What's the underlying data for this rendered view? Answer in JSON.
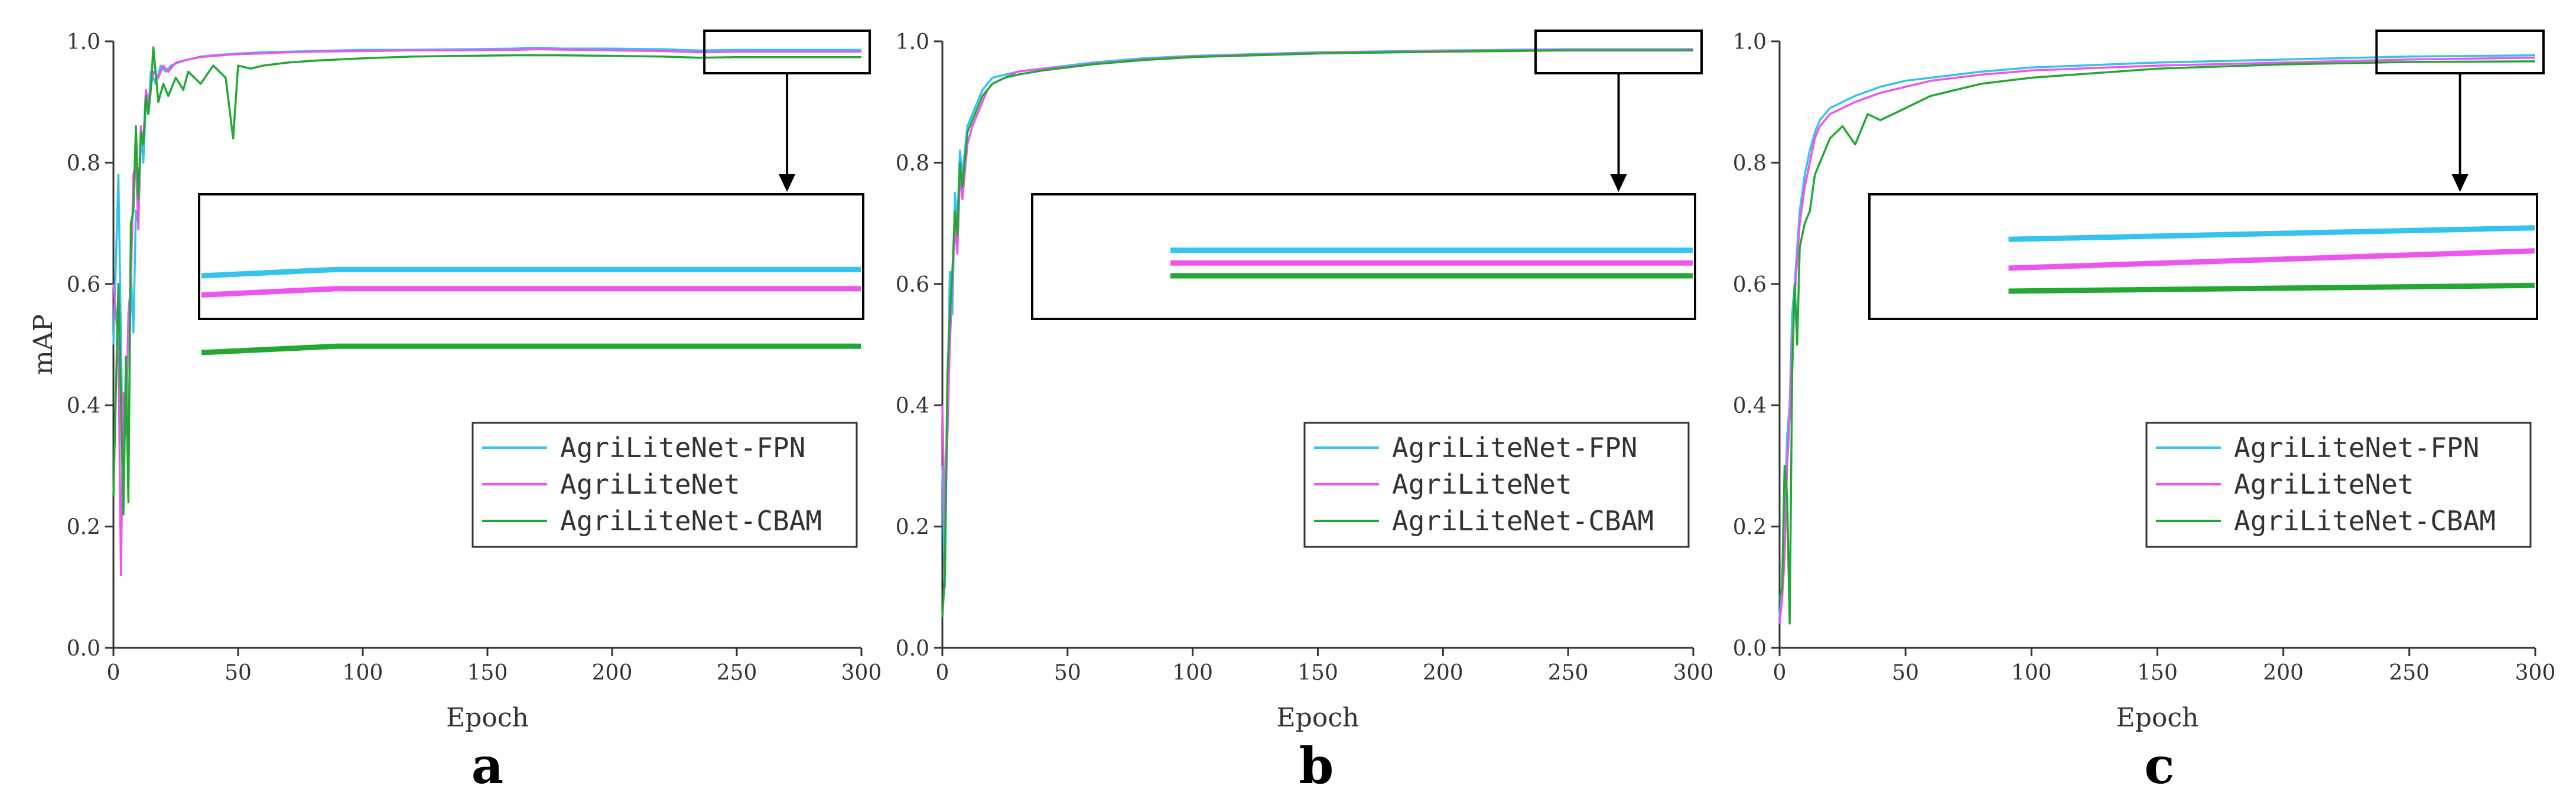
{
  "chart_data": [
    {
      "type": "line",
      "panel_label": "a",
      "xlabel": "Epoch",
      "ylabel": "mAP",
      "xlim": [
        0,
        300
      ],
      "ylim": [
        0,
        1.0
      ],
      "xticks": [
        "0",
        "50",
        "100",
        "150",
        "200",
        "250",
        "300"
      ],
      "yticks": [
        "0.0",
        "0.2",
        "0.4",
        "0.6",
        "0.8",
        "1.0"
      ],
      "legend_position": "bottom-right",
      "zoom_inset": {
        "x_range": [
          237,
          300
        ],
        "y_range": [
          0.979,
          0.997
        ]
      },
      "series": [
        {
          "name": "AgriLiteNet-FPN",
          "color": "#33c3ee",
          "x": [
            0,
            2,
            4,
            5,
            6,
            7,
            8,
            9,
            10,
            11,
            12,
            13,
            14,
            15,
            17,
            19,
            21,
            23,
            26,
            30,
            35,
            40,
            50,
            60,
            70,
            80,
            100,
            120,
            140,
            160,
            170,
            180,
            200,
            220,
            235,
            250,
            270,
            300
          ],
          "values": [
            0.5,
            0.78,
            0.25,
            0.44,
            0.3,
            0.62,
            0.52,
            0.72,
            0.7,
            0.85,
            0.8,
            0.9,
            0.88,
            0.95,
            0.93,
            0.96,
            0.95,
            0.96,
            0.965,
            0.97,
            0.975,
            0.977,
            0.98,
            0.982,
            0.983,
            0.984,
            0.986,
            0.986,
            0.987,
            0.988,
            0.989,
            0.988,
            0.988,
            0.987,
            0.985,
            0.986,
            0.986,
            0.986
          ]
        },
        {
          "name": "AgriLiteNet",
          "color": "#ee55ee",
          "x": [
            0,
            2,
            3,
            4,
            5,
            6,
            7,
            8,
            9,
            10,
            11,
            12,
            13,
            14,
            16,
            18,
            20,
            22,
            25,
            30,
            35,
            40,
            50,
            60,
            70,
            80,
            100,
            120,
            140,
            160,
            170,
            200,
            220,
            235,
            250,
            270,
            300
          ],
          "values": [
            0.6,
            0.5,
            0.12,
            0.42,
            0.35,
            0.55,
            0.6,
            0.78,
            0.8,
            0.69,
            0.86,
            0.83,
            0.92,
            0.9,
            0.95,
            0.94,
            0.96,
            0.95,
            0.965,
            0.97,
            0.974,
            0.976,
            0.979,
            0.98,
            0.982,
            0.983,
            0.984,
            0.985,
            0.985,
            0.986,
            0.987,
            0.985,
            0.984,
            0.982,
            0.983,
            0.983,
            0.983
          ]
        },
        {
          "name": "AgriLiteNet-CBAM",
          "color": "#22a833",
          "x": [
            0,
            2,
            4,
            5,
            6,
            7,
            8,
            9,
            10,
            11,
            12,
            13,
            14,
            15,
            16,
            18,
            20,
            22,
            25,
            28,
            30,
            35,
            40,
            45,
            48,
            50,
            55,
            60,
            70,
            80,
            90,
            100,
            120,
            140,
            160,
            180,
            200,
            220,
            235,
            250,
            270,
            300
          ],
          "values": [
            0.25,
            0.6,
            0.22,
            0.48,
            0.24,
            0.7,
            0.72,
            0.86,
            0.74,
            0.85,
            0.83,
            0.91,
            0.88,
            0.92,
            0.99,
            0.9,
            0.93,
            0.91,
            0.94,
            0.92,
            0.95,
            0.93,
            0.96,
            0.94,
            0.84,
            0.96,
            0.955,
            0.96,
            0.965,
            0.968,
            0.97,
            0.972,
            0.975,
            0.976,
            0.977,
            0.977,
            0.976,
            0.975,
            0.973,
            0.974,
            0.974,
            0.974
          ]
        }
      ]
    },
    {
      "type": "line",
      "panel_label": "b",
      "xlabel": "Epoch",
      "ylabel": "",
      "xlim": [
        0,
        300
      ],
      "ylim": [
        0,
        1.0
      ],
      "xticks": [
        "0",
        "50",
        "100",
        "150",
        "200",
        "250",
        "300"
      ],
      "yticks": [
        "0.0",
        "0.2",
        "0.4",
        "0.6",
        "0.8",
        "1.0"
      ],
      "legend_position": "bottom-right",
      "zoom_inset": {
        "x_range": [
          237,
          300
        ],
        "y_range": [
          0.982,
          0.991
        ]
      },
      "series": [
        {
          "name": "AgriLiteNet-FPN",
          "color": "#33c3ee",
          "x": [
            0,
            1,
            2,
            3,
            4,
            5,
            6,
            7,
            8,
            10,
            12,
            14,
            16,
            18,
            20,
            25,
            30,
            40,
            50,
            60,
            80,
            100,
            150,
            200,
            250,
            300
          ],
          "values": [
            0.3,
            0.1,
            0.4,
            0.62,
            0.55,
            0.75,
            0.7,
            0.82,
            0.78,
            0.86,
            0.88,
            0.9,
            0.92,
            0.93,
            0.94,
            0.945,
            0.95,
            0.955,
            0.96,
            0.965,
            0.972,
            0.976,
            0.982,
            0.985,
            0.987,
            0.987
          ]
        },
        {
          "name": "AgriLiteNet",
          "color": "#ee55ee",
          "x": [
            0,
            1,
            2,
            3,
            4,
            5,
            6,
            7,
            8,
            10,
            12,
            14,
            16,
            18,
            20,
            25,
            30,
            40,
            50,
            60,
            80,
            100,
            150,
            200,
            250,
            300
          ],
          "values": [
            0.4,
            0.2,
            0.35,
            0.5,
            0.6,
            0.7,
            0.65,
            0.78,
            0.74,
            0.83,
            0.86,
            0.88,
            0.9,
            0.92,
            0.93,
            0.94,
            0.95,
            0.955,
            0.958,
            0.963,
            0.97,
            0.975,
            0.981,
            0.984,
            0.986,
            0.986
          ]
        },
        {
          "name": "AgriLiteNet-CBAM",
          "color": "#22a833",
          "x": [
            0,
            1,
            2,
            3,
            4,
            5,
            6,
            7,
            8,
            10,
            12,
            14,
            16,
            18,
            20,
            25,
            30,
            40,
            50,
            60,
            80,
            100,
            150,
            200,
            250,
            300
          ],
          "values": [
            0.05,
            0.12,
            0.45,
            0.55,
            0.62,
            0.72,
            0.68,
            0.8,
            0.76,
            0.85,
            0.87,
            0.89,
            0.91,
            0.92,
            0.93,
            0.94,
            0.945,
            0.952,
            0.957,
            0.962,
            0.969,
            0.974,
            0.98,
            0.983,
            0.985,
            0.985
          ]
        }
      ]
    },
    {
      "type": "line",
      "panel_label": "c",
      "xlabel": "Epoch",
      "ylabel": "",
      "xlim": [
        0,
        300
      ],
      "ylim": [
        0,
        1.0
      ],
      "xticks": [
        "0",
        "50",
        "100",
        "150",
        "200",
        "250",
        "300"
      ],
      "yticks": [
        "0.0",
        "0.2",
        "0.4",
        "0.6",
        "0.8",
        "1.0"
      ],
      "legend_position": "bottom-right",
      "zoom_inset": {
        "x_range": [
          237,
          300
        ],
        "y_range": [
          0.962,
          0.982
        ]
      },
      "series": [
        {
          "name": "AgriLiteNet-FPN",
          "color": "#33c3ee",
          "x": [
            0,
            1,
            2,
            3,
            4,
            5,
            6,
            8,
            10,
            12,
            14,
            16,
            18,
            20,
            25,
            30,
            40,
            50,
            60,
            80,
            100,
            150,
            200,
            250,
            300
          ],
          "values": [
            0.05,
            0.1,
            0.2,
            0.35,
            0.4,
            0.55,
            0.6,
            0.72,
            0.78,
            0.82,
            0.85,
            0.87,
            0.88,
            0.89,
            0.9,
            0.91,
            0.925,
            0.935,
            0.94,
            0.95,
            0.957,
            0.965,
            0.97,
            0.975,
            0.977
          ]
        },
        {
          "name": "AgriLiteNet",
          "color": "#ee55ee",
          "x": [
            0,
            1,
            2,
            3,
            4,
            5,
            6,
            8,
            10,
            12,
            14,
            16,
            18,
            20,
            25,
            30,
            40,
            50,
            60,
            80,
            100,
            150,
            200,
            250,
            300
          ],
          "values": [
            0.04,
            0.08,
            0.15,
            0.3,
            0.38,
            0.5,
            0.58,
            0.7,
            0.76,
            0.8,
            0.84,
            0.86,
            0.87,
            0.88,
            0.89,
            0.9,
            0.915,
            0.925,
            0.935,
            0.945,
            0.952,
            0.96,
            0.965,
            0.97,
            0.973
          ]
        },
        {
          "name": "AgriLiteNet-CBAM",
          "color": "#22a833",
          "x": [
            0,
            1,
            2,
            3,
            4,
            5,
            6,
            7,
            8,
            10,
            12,
            14,
            16,
            18,
            20,
            25,
            30,
            35,
            40,
            50,
            60,
            80,
            100,
            150,
            200,
            250,
            300
          ],
          "values": [
            0.08,
            0.1,
            0.3,
            0.25,
            0.04,
            0.45,
            0.6,
            0.5,
            0.66,
            0.7,
            0.72,
            0.78,
            0.8,
            0.82,
            0.84,
            0.86,
            0.83,
            0.88,
            0.87,
            0.89,
            0.91,
            0.93,
            0.94,
            0.955,
            0.962,
            0.966,
            0.967
          ]
        }
      ]
    }
  ]
}
